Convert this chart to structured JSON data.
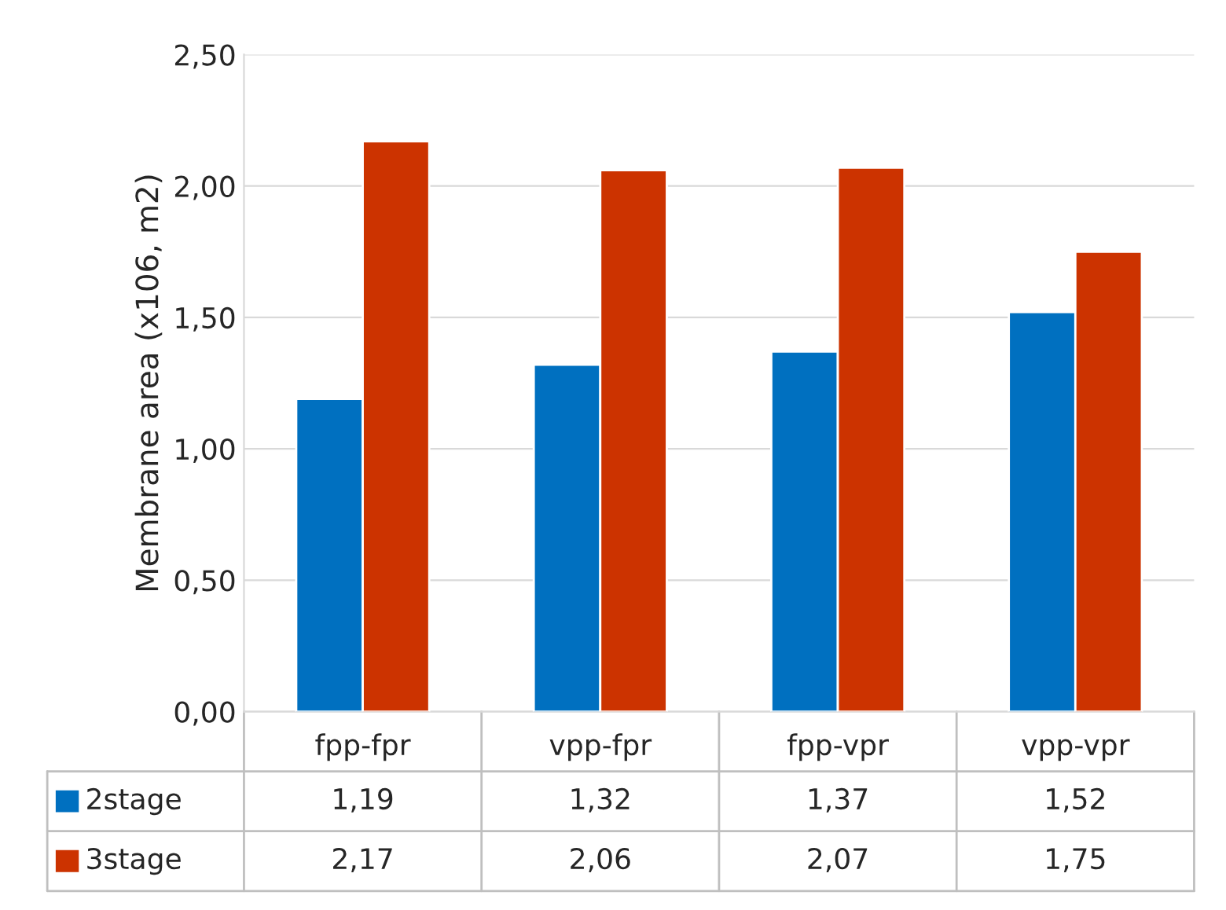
{
  "chart_data": {
    "type": "bar",
    "ylabel": "Membrane area (x106, m2)",
    "categories": [
      "fpp-fpr",
      "vpp-fpr",
      "fpp-vpr",
      "vpp-vpr"
    ],
    "series": [
      {
        "name": "2stage",
        "color": "#0070c0",
        "values": [
          1.19,
          1.32,
          1.37,
          1.52
        ],
        "value_labels": [
          "1,19",
          "1,32",
          "1,37",
          "1,52"
        ]
      },
      {
        "name": "3stage",
        "color": "#cc3300",
        "values": [
          2.17,
          2.06,
          2.07,
          1.75
        ],
        "value_labels": [
          "2,17",
          "2,06",
          "2,07",
          "1,75"
        ]
      }
    ],
    "ylim": [
      0,
      2.5
    ],
    "yticks": [
      {
        "value": 0,
        "label": "0,00"
      },
      {
        "value": 0.5,
        "label": "0,50"
      },
      {
        "value": 1,
        "label": "1,00"
      },
      {
        "value": 1.5,
        "label": "1,50"
      },
      {
        "value": 2,
        "label": "2,00"
      },
      {
        "value": 2.5,
        "label": "2,50"
      }
    ],
    "grid": "y",
    "legend": "bottom"
  }
}
